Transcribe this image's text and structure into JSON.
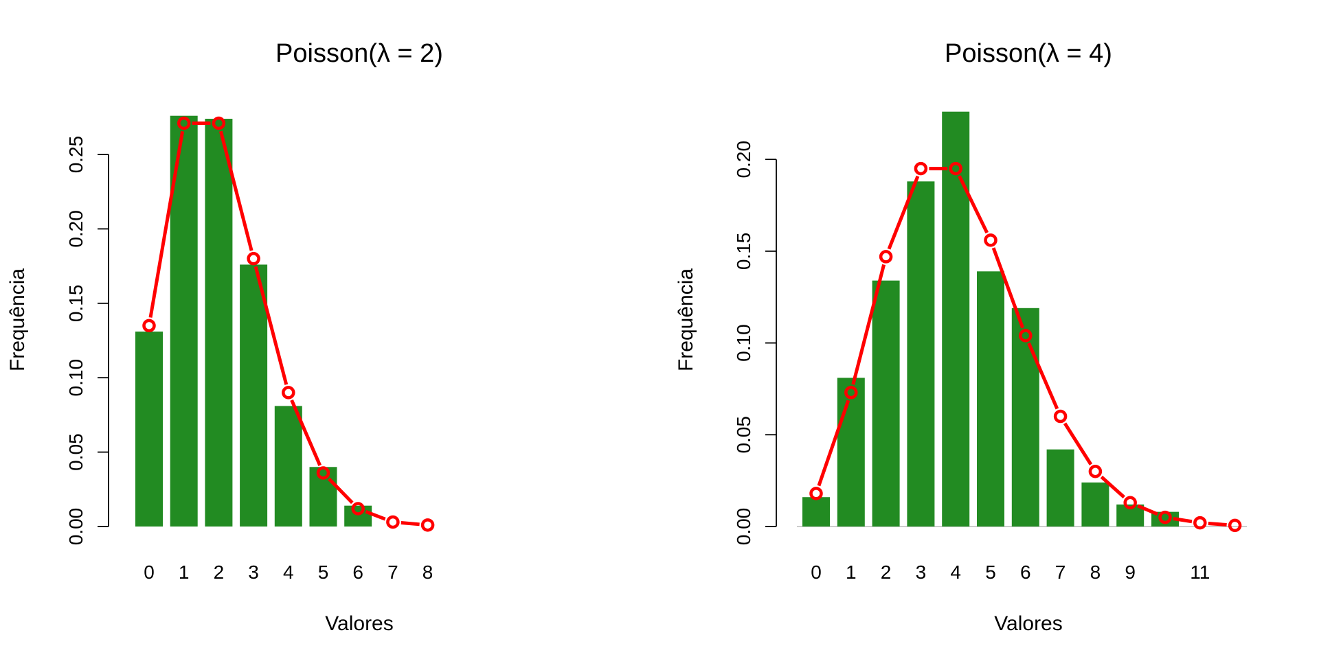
{
  "chart_data": [
    {
      "type": "bar",
      "title": "Poisson(λ = 2)",
      "xlabel": "Valores",
      "ylabel": "Frequência",
      "categories": [
        "0",
        "1",
        "2",
        "3",
        "4",
        "5",
        "6",
        "7",
        "8"
      ],
      "ylim": [
        0,
        0.28
      ],
      "yticks": [
        "0.00",
        "0.05",
        "0.10",
        "0.15",
        "0.20",
        "0.25"
      ],
      "series": [
        {
          "values": [
            0.131,
            0.276,
            0.274,
            0.176,
            0.081,
            0.04,
            0.014,
            0,
            0
          ]
        },
        {
          "values": [
            0.135,
            0.271,
            0.271,
            0.18,
            0.09,
            0.036,
            0.012,
            0.003,
            0.001
          ]
        }
      ]
    },
    {
      "type": "bar",
      "title": "Poisson(λ = 4)",
      "xlabel": "Valores",
      "ylabel": "Frequência",
      "categories": [
        "0",
        "1",
        "2",
        "3",
        "4",
        "5",
        "6",
        "7",
        "8",
        "9",
        "",
        "11",
        ""
      ],
      "ylim": [
        0,
        0.227
      ],
      "yticks": [
        "0.00",
        "0.05",
        "0.10",
        "0.15",
        "0.20"
      ],
      "series": [
        {
          "values": [
            0.016,
            0.081,
            0.134,
            0.188,
            0.226,
            0.139,
            0.119,
            0.042,
            0.024,
            0.012,
            0.008,
            0,
            0
          ]
        },
        {
          "values": [
            0.018,
            0.073,
            0.147,
            0.195,
            0.195,
            0.156,
            0.104,
            0.06,
            0.03,
            0.013,
            0.005,
            0.002,
            0.0006
          ]
        }
      ]
    }
  ],
  "colors": {
    "bar": "#228B22",
    "line": "#FF0000",
    "axis": "#000000"
  }
}
